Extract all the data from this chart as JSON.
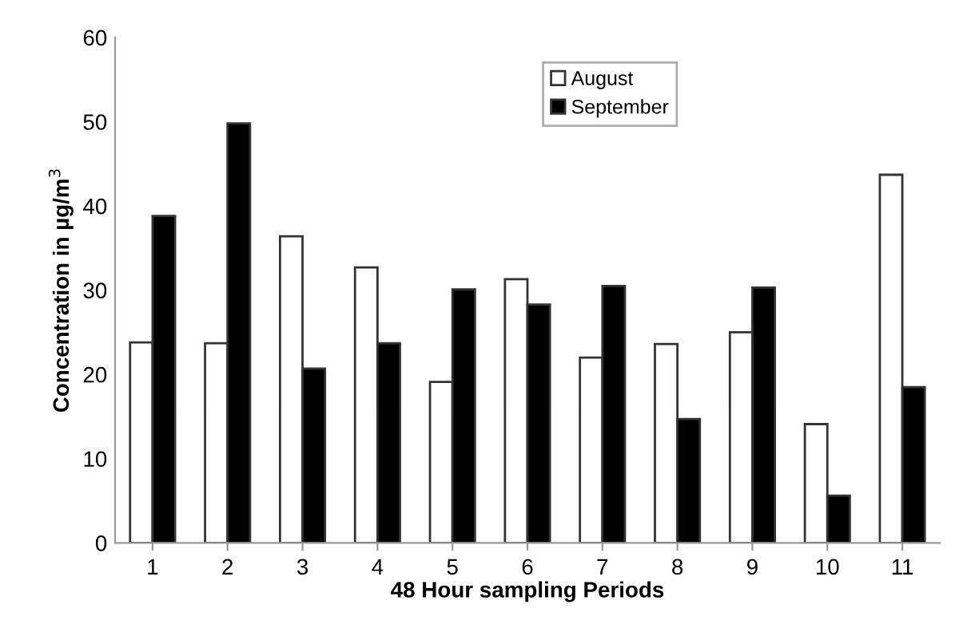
{
  "chart_data": {
    "type": "bar",
    "xlabel": "48 Hour sampling Periods",
    "ylabel": "Concentration in µg/m$^{3}$",
    "categories": [
      "1",
      "2",
      "3",
      "4",
      "5",
      "6",
      "7",
      "8",
      "9",
      "10",
      "11"
    ],
    "series": [
      {
        "name": "August",
        "color": "#ffffff",
        "values": [
          23.8,
          23.7,
          36.4,
          32.7,
          19.1,
          31.3,
          22.0,
          23.6,
          25.0,
          14.1,
          43.7
        ]
      },
      {
        "name": "September",
        "color": "#000000",
        "values": [
          38.8,
          49.8,
          20.7,
          23.7,
          30.1,
          28.3,
          30.5,
          14.7,
          30.3,
          5.6,
          18.5
        ]
      }
    ],
    "ylim": [
      0,
      60
    ],
    "yticks": [
      0,
      10,
      20,
      30,
      40,
      50,
      60
    ],
    "grid": false,
    "legend": "top"
  }
}
